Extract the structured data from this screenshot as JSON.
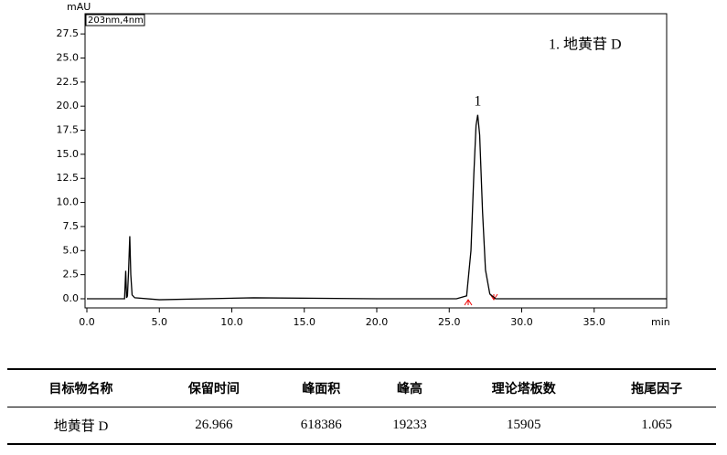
{
  "chart_data": {
    "type": "line",
    "y_label": "mAU",
    "channel": "203nm,4nm",
    "x_label": "min",
    "annotation": "1.   地黄苷 D",
    "x": [
      0,
      2.6,
      2.68,
      2.74,
      2.8,
      2.88,
      2.96,
      3.03,
      3.12,
      3.3,
      5,
      11.5,
      20,
      25.5,
      26.2,
      26.5,
      26.7,
      26.85,
      26.966,
      27.1,
      27.3,
      27.5,
      27.8,
      28.2,
      40
    ],
    "series": [
      {
        "name": "203nm,4nm",
        "color": "#000000",
        "values": [
          0,
          0,
          2.9,
          0.1,
          0.3,
          3,
          6.5,
          2.5,
          0.4,
          0.1,
          -0.1,
          0.1,
          0,
          0,
          0.3,
          5,
          13,
          18,
          19.1,
          17,
          9,
          3,
          0.5,
          0,
          0
        ]
      }
    ],
    "peak_labels": [
      {
        "x": 26.966,
        "y": 19.1,
        "label": "1"
      }
    ],
    "xlim": [
      0,
      40
    ],
    "ylim": [
      -0.95,
      29.6
    ],
    "xticks": [
      {
        "value": 0,
        "label": "0.0"
      },
      {
        "value": 5,
        "label": "5.0"
      },
      {
        "value": 10,
        "label": "10.0"
      },
      {
        "value": 15,
        "label": "15.0"
      },
      {
        "value": 20,
        "label": "20.0"
      },
      {
        "value": 25,
        "label": "25.0"
      },
      {
        "value": 30,
        "label": "30.0"
      },
      {
        "value": 35,
        "label": "35.0"
      }
    ],
    "yticks": [
      {
        "value": 0,
        "label": "0.0"
      },
      {
        "value": 2.5,
        "label": "2.5"
      },
      {
        "value": 5,
        "label": "5.0"
      },
      {
        "value": 7.5,
        "label": "7.5"
      },
      {
        "value": 10,
        "label": "10.0"
      },
      {
        "value": 12.5,
        "label": "12.5"
      },
      {
        "value": 15,
        "label": "15.0"
      },
      {
        "value": 17.5,
        "label": "17.5"
      },
      {
        "value": 20,
        "label": "20.0"
      },
      {
        "value": 22.5,
        "label": "22.5"
      },
      {
        "value": 25,
        "label": "25.0"
      },
      {
        "value": 27.5,
        "label": "27.5"
      }
    ]
  },
  "table": {
    "headers": [
      "目标物名称",
      "保留时间",
      "峰面积",
      "峰高",
      "理论塔板数",
      "拖尾因子"
    ],
    "rows": [
      [
        "地黄苷 D",
        "26.966",
        "618386",
        "19233",
        "15905",
        "1.065"
      ]
    ]
  }
}
